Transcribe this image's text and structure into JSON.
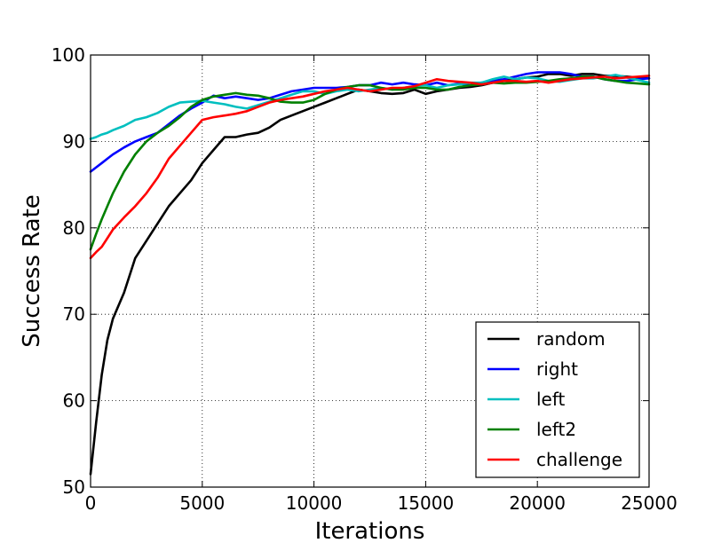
{
  "chart_data": {
    "type": "line",
    "title": "",
    "xlabel": "Iterations",
    "ylabel": "Success Rate",
    "xlim": [
      0,
      25000
    ],
    "ylim": [
      50,
      100
    ],
    "xticks": [
      0,
      5000,
      10000,
      15000,
      20000,
      25000
    ],
    "xtick_labels": [
      "0",
      "5000",
      "10000",
      "15000",
      "20000",
      "25000"
    ],
    "yticks": [
      50,
      60,
      70,
      80,
      90,
      100
    ],
    "ytick_labels": [
      "50",
      "60",
      "70",
      "80",
      "90",
      "100"
    ],
    "grid": true,
    "legend_position": "lower-right",
    "series": [
      {
        "name": "random",
        "color": "#000000",
        "x": [
          0,
          250,
          500,
          750,
          1000,
          1500,
          2000,
          2500,
          3000,
          3500,
          4000,
          4500,
          5000,
          5500,
          6000,
          6500,
          7000,
          7500,
          8000,
          8500,
          9000,
          9500,
          10000,
          10500,
          11000,
          11500,
          12000,
          12500,
          13000,
          13500,
          14000,
          14500,
          15000,
          15500,
          16000,
          16500,
          17000,
          17500,
          18000,
          18500,
          19000,
          19500,
          20000,
          20500,
          21000,
          21500,
          22000,
          22500,
          23000,
          23500,
          24000,
          24500,
          25000
        ],
        "y": [
          51.5,
          57.5,
          63.0,
          67.0,
          69.5,
          72.5,
          76.5,
          78.5,
          80.5,
          82.5,
          84.0,
          85.5,
          87.5,
          89.0,
          90.5,
          90.5,
          90.8,
          91.0,
          91.6,
          92.5,
          93.0,
          93.5,
          94.0,
          94.5,
          95.0,
          95.5,
          96.0,
          95.8,
          95.6,
          95.5,
          95.6,
          96.0,
          95.5,
          95.8,
          96.0,
          96.2,
          96.3,
          96.5,
          96.8,
          97.0,
          97.2,
          97.4,
          97.5,
          97.8,
          97.8,
          97.6,
          97.8,
          97.8,
          97.6,
          97.6,
          97.5,
          97.4,
          97.3
        ]
      },
      {
        "name": "right",
        "color": "#0000ff",
        "x": [
          0,
          250,
          500,
          750,
          1000,
          1500,
          2000,
          2500,
          3000,
          3500,
          4000,
          4500,
          5000,
          5500,
          6000,
          6500,
          7000,
          7500,
          8000,
          8500,
          9000,
          9500,
          10000,
          10500,
          11000,
          11500,
          12000,
          12500,
          13000,
          13500,
          14000,
          14500,
          15000,
          15500,
          16000,
          16500,
          17000,
          17500,
          18000,
          18500,
          19000,
          19500,
          20000,
          20500,
          21000,
          21500,
          22000,
          22500,
          23000,
          23500,
          24000,
          24500,
          25000
        ],
        "y": [
          86.5,
          87.0,
          87.5,
          88.0,
          88.5,
          89.3,
          90.0,
          90.5,
          91.0,
          92.0,
          93.0,
          93.8,
          94.5,
          95.3,
          95.0,
          95.2,
          95.0,
          94.8,
          95.0,
          95.4,
          95.8,
          96.0,
          96.2,
          96.2,
          96.2,
          96.3,
          96.5,
          96.5,
          96.8,
          96.6,
          96.8,
          96.6,
          96.5,
          96.8,
          96.5,
          96.7,
          96.5,
          96.8,
          97.0,
          97.2,
          97.5,
          97.8,
          98.0,
          98.0,
          98.0,
          97.8,
          97.5,
          97.5,
          97.2,
          97.0,
          97.0,
          97.2,
          97.3
        ]
      },
      {
        "name": "left",
        "color": "#00bfbf",
        "x": [
          0,
          250,
          500,
          750,
          1000,
          1500,
          2000,
          2500,
          3000,
          3500,
          4000,
          4500,
          5000,
          5500,
          6000,
          6500,
          7000,
          7500,
          8000,
          8500,
          9000,
          9500,
          10000,
          10500,
          11000,
          11500,
          12000,
          12500,
          13000,
          13500,
          14000,
          14500,
          15000,
          15500,
          16000,
          16500,
          17000,
          17500,
          18000,
          18500,
          19000,
          19500,
          20000,
          20500,
          21000,
          21500,
          22000,
          22500,
          23000,
          23500,
          24000,
          24500,
          25000
        ],
        "y": [
          90.3,
          90.5,
          90.8,
          91.0,
          91.3,
          91.8,
          92.5,
          92.8,
          93.3,
          94.0,
          94.5,
          94.6,
          94.7,
          94.5,
          94.3,
          94.0,
          93.8,
          94.2,
          94.6,
          95.0,
          95.4,
          95.8,
          95.8,
          95.5,
          95.8,
          96.0,
          95.8,
          96.0,
          96.2,
          96.0,
          96.2,
          96.4,
          96.5,
          96.2,
          96.5,
          96.6,
          96.8,
          96.8,
          97.2,
          97.5,
          97.2,
          97.4,
          97.3,
          97.0,
          96.9,
          97.1,
          97.3,
          97.3,
          97.5,
          97.7,
          97.4,
          97.1,
          96.8
        ]
      },
      {
        "name": "left2",
        "color": "#008000",
        "x": [
          0,
          250,
          500,
          750,
          1000,
          1500,
          2000,
          2500,
          3000,
          3500,
          4000,
          4500,
          5000,
          5500,
          6000,
          6500,
          7000,
          7500,
          8000,
          8500,
          9000,
          9500,
          10000,
          10500,
          11000,
          11500,
          12000,
          12500,
          13000,
          13500,
          14000,
          14500,
          15000,
          15500,
          16000,
          16500,
          17000,
          17500,
          18000,
          18500,
          19000,
          19500,
          20000,
          20500,
          21000,
          21500,
          22000,
          22500,
          23000,
          23500,
          24000,
          24500,
          25000
        ],
        "y": [
          77.5,
          79.3,
          81.0,
          82.5,
          84.0,
          86.5,
          88.5,
          90.0,
          91.0,
          91.8,
          92.8,
          94.0,
          94.8,
          95.2,
          95.4,
          95.6,
          95.4,
          95.3,
          95.0,
          94.6,
          94.5,
          94.5,
          94.8,
          95.5,
          96.0,
          96.3,
          96.5,
          96.5,
          96.2,
          96.0,
          96.0,
          96.2,
          96.2,
          96.0,
          96.0,
          96.3,
          96.5,
          96.6,
          96.8,
          96.7,
          96.8,
          96.8,
          96.9,
          97.0,
          97.2,
          97.3,
          97.5,
          97.5,
          97.2,
          97.0,
          96.8,
          96.7,
          96.6
        ]
      },
      {
        "name": "challenge",
        "color": "#ff0000",
        "x": [
          0,
          250,
          500,
          750,
          1000,
          1500,
          2000,
          2500,
          3000,
          3500,
          4000,
          4500,
          5000,
          5500,
          6000,
          6500,
          7000,
          7500,
          8000,
          8500,
          9000,
          9500,
          10000,
          10500,
          11000,
          11500,
          12000,
          12500,
          13000,
          13500,
          14000,
          14500,
          15000,
          15500,
          16000,
          16500,
          17000,
          17500,
          18000,
          18500,
          19000,
          19500,
          20000,
          20500,
          21000,
          21500,
          22000,
          22500,
          23000,
          23500,
          24000,
          24500,
          25000
        ],
        "y": [
          76.5,
          77.2,
          77.8,
          78.8,
          79.8,
          81.2,
          82.5,
          84.0,
          85.8,
          88.0,
          89.5,
          91.0,
          92.5,
          92.8,
          93.0,
          93.2,
          93.5,
          94.0,
          94.5,
          94.8,
          95.0,
          95.2,
          95.5,
          95.8,
          96.0,
          96.2,
          96.0,
          95.8,
          96.0,
          96.2,
          96.2,
          96.4,
          96.8,
          97.2,
          97.0,
          96.9,
          96.8,
          96.6,
          96.8,
          97.0,
          97.0,
          96.9,
          97.0,
          96.8,
          97.0,
          97.2,
          97.3,
          97.4,
          97.5,
          97.3,
          97.4,
          97.5,
          97.6
        ]
      }
    ]
  }
}
